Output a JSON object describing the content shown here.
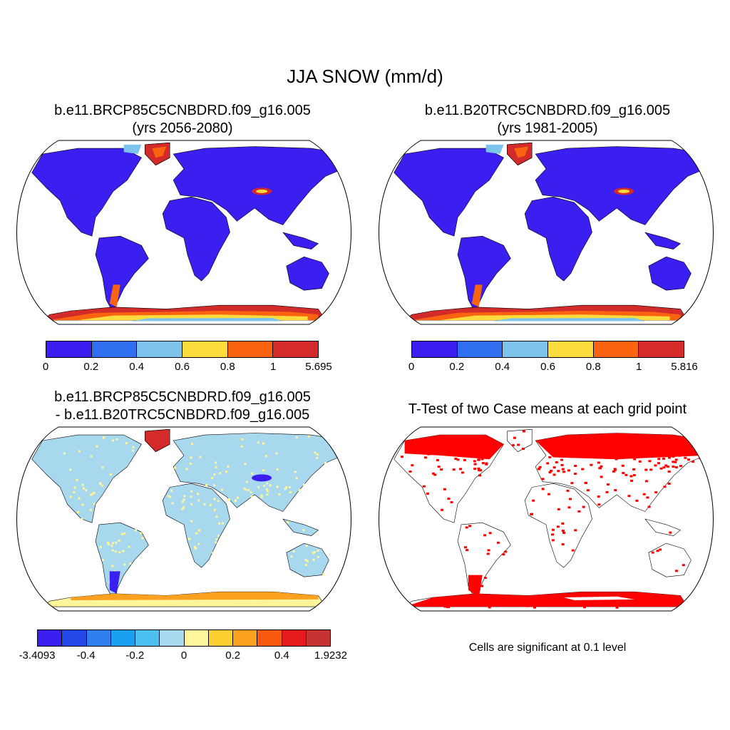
{
  "title": "JJA SNOW (mm/d)",
  "panels": [
    {
      "title_line1": "b.e11.BRCP85C5CNBDRD.f09_g16.005",
      "title_line2": "(yrs 2056-2080)",
      "colorbar": {
        "colors": [
          "#3b1ef0",
          "#2f6ff0",
          "#7dc4ec",
          "#fcdc3c",
          "#fa6410",
          "#d42a2a"
        ],
        "labels": [
          "0",
          "0.2",
          "0.4",
          "0.6",
          "0.8",
          "1",
          "5.695"
        ]
      }
    },
    {
      "title_line1": "b.e11.B20TRC5CNBDRD.f09_g16.005",
      "title_line2": "(yrs 1981-2005)",
      "colorbar": {
        "colors": [
          "#3b1ef0",
          "#2f6ff0",
          "#7dc4ec",
          "#fcdc3c",
          "#fa6410",
          "#d42a2a"
        ],
        "labels": [
          "0",
          "0.2",
          "0.4",
          "0.6",
          "0.8",
          "1",
          "5.816"
        ]
      }
    },
    {
      "title_line1": "b.e11.BRCP85C5CNBDRD.f09_g16.005",
      "title_line2": "- b.e11.B20TRC5CNBDRD.f09_g16.005",
      "colorbar": {
        "colors": [
          "#3b1ef0",
          "#2447e8",
          "#2f80ee",
          "#1aa0f0",
          "#4cc0f0",
          "#a8d8ee",
          "#fff59a",
          "#fcd030",
          "#fca020",
          "#fa5a10",
          "#e61a1a",
          "#c83232"
        ],
        "labels": [
          "-3.4093",
          "-0.4",
          "-0.2",
          "0",
          "0.2",
          "0.4",
          "1.9232"
        ]
      }
    },
    {
      "title_line1": "T-Test of two Case means at each grid point",
      "note": "Cells are significant at 0.1 level"
    }
  ],
  "map_colors": {
    "land_low": "#3b1ef0",
    "snow_mid": "#7dc4ec",
    "snow_yellow": "#fcdc3c",
    "snow_orange": "#fa6410",
    "snow_red": "#d42a2a",
    "diff_light_blue": "#a8d8ee",
    "diff_yellow": "#fff59a",
    "diff_blue": "#3b1ef0",
    "ttest_red": "#ff0000"
  }
}
